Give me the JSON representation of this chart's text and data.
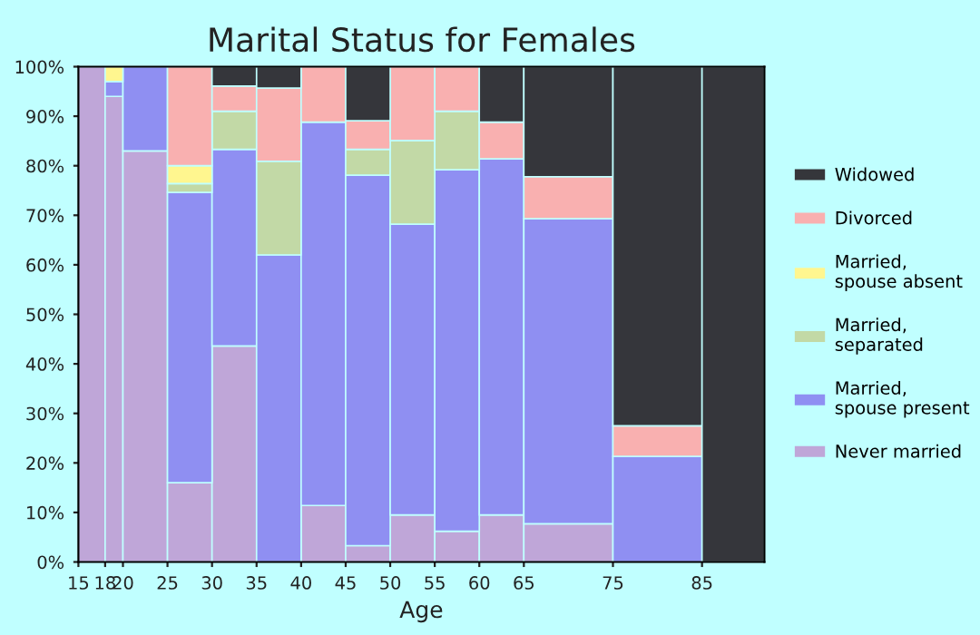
{
  "chart_data": {
    "type": "bar",
    "stacked": true,
    "title": "Marital Status for Females",
    "xlabel": "Age",
    "x": [
      16.5,
      19,
      22.5,
      27.5,
      32.5,
      37.5,
      42.5,
      47.5,
      52.5,
      57.5,
      62.5,
      70,
      80,
      88.5
    ],
    "xlim": [
      15,
      92
    ],
    "xticks": [
      15,
      18,
      20,
      25,
      30,
      35,
      40,
      45,
      50,
      55,
      60,
      65,
      75,
      85
    ],
    "ylim": [
      0,
      100
    ],
    "yticks": [
      {
        "value": 0,
        "label": "0%"
      },
      {
        "value": 10,
        "label": "10%"
      },
      {
        "value": 20,
        "label": "20%"
      },
      {
        "value": 30,
        "label": "30%"
      },
      {
        "value": 40,
        "label": "40%"
      },
      {
        "value": 50,
        "label": "50%"
      },
      {
        "value": 60,
        "label": "60%"
      },
      {
        "value": 70,
        "label": "70%"
      },
      {
        "value": 80,
        "label": "80%"
      },
      {
        "value": 90,
        "label": "90%"
      },
      {
        "value": 100,
        "label": "100%"
      }
    ],
    "grid": false,
    "legend": "right",
    "series": [
      {
        "name": "Never married",
        "color": "#bfa6d8",
        "values": [
          100,
          94,
          83,
          16,
          43.6,
          null,
          11.4,
          3.3,
          9.5,
          6.2,
          9.5,
          7.7,
          null,
          null
        ]
      },
      {
        "name": "Married,\nspouse present",
        "color": "#8f8ff2",
        "values": [
          null,
          3,
          17,
          58.6,
          39.7,
          62,
          77.4,
          74.8,
          58.7,
          73,
          71.9,
          61.6,
          21.3,
          null
        ]
      },
      {
        "name": "Married,\nseparated",
        "color": "#c2d9a6",
        "values": [
          null,
          null,
          null,
          1.8,
          7.7,
          18.9,
          null,
          5.2,
          16.9,
          11.8,
          null,
          null,
          null,
          null
        ]
      },
      {
        "name": "Married,\nspouse absent",
        "color": "#fff68f",
        "values": [
          null,
          3,
          null,
          3.6,
          null,
          null,
          null,
          null,
          null,
          null,
          null,
          null,
          null,
          null
        ]
      },
      {
        "name": "Divorced",
        "color": "#f9b0b0",
        "values": [
          null,
          null,
          null,
          20,
          5.1,
          14.8,
          11.2,
          5.8,
          14.9,
          9,
          7.4,
          8.5,
          6.2,
          null
        ]
      },
      {
        "name": "Widowed",
        "color": "#35363b",
        "values": [
          null,
          null,
          null,
          null,
          3.9,
          4.3,
          null,
          10.9,
          null,
          null,
          11.2,
          22.2,
          72.5,
          100
        ]
      }
    ]
  }
}
